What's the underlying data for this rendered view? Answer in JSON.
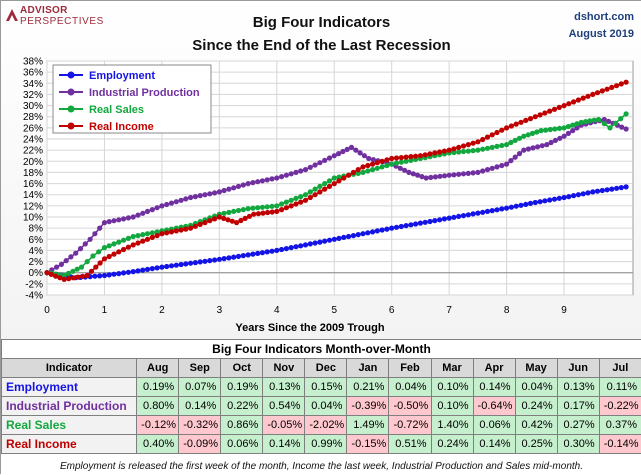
{
  "header": {
    "logo_line1": "ADVISOR",
    "logo_line2": "PERSPECTIVES",
    "title_line1": "Big Four Indicators",
    "title_line2": "Since the End of the Last Recession",
    "source": "dshort.com",
    "date": "August 2019"
  },
  "chart_data": {
    "type": "line",
    "xlabel": "Years Since the 2009 Trough",
    "ylabel": "",
    "xlim": [
      0,
      10.2
    ],
    "ylim": [
      -4,
      38
    ],
    "x_ticks": [
      0,
      1,
      2,
      3,
      4,
      5,
      6,
      7,
      8,
      9
    ],
    "y_ticks": [
      -4,
      -2,
      0,
      2,
      4,
      6,
      8,
      10,
      12,
      14,
      16,
      18,
      20,
      22,
      24,
      26,
      28,
      30,
      32,
      34,
      36,
      38
    ],
    "y_tick_labels": [
      "-4%",
      "-2%",
      "0%",
      "2%",
      "4%",
      "6%",
      "8%",
      "10%",
      "12%",
      "14%",
      "16%",
      "18%",
      "20%",
      "22%",
      "24%",
      "26%",
      "28%",
      "30%",
      "32%",
      "34%",
      "36%",
      "38%"
    ],
    "legend_position": "top-left",
    "grid": true,
    "series": [
      {
        "name": "Employment",
        "color": "#1414e6",
        "x": [
          0,
          0.5,
          1,
          1.5,
          2,
          2.5,
          3,
          3.5,
          4,
          4.5,
          5,
          5.5,
          6,
          6.5,
          7,
          7.5,
          8,
          8.5,
          9,
          9.5,
          10.08
        ],
        "y": [
          0,
          -0.9,
          -0.5,
          0.2,
          1.0,
          1.7,
          2.4,
          3.2,
          4.0,
          5.0,
          6.0,
          7.0,
          8.0,
          8.9,
          9.8,
          10.7,
          11.6,
          12.6,
          13.5,
          14.5,
          15.4
        ]
      },
      {
        "name": "Industrial Production",
        "color": "#7030a0",
        "x": [
          0,
          0.25,
          0.5,
          0.75,
          1,
          1.5,
          2,
          2.5,
          3,
          3.5,
          4,
          4.5,
          5,
          5.3,
          5.6,
          6,
          6.3,
          6.6,
          7,
          7.5,
          8,
          8.3,
          8.7,
          9,
          9.3,
          9.7,
          10.08
        ],
        "y": [
          0,
          1.5,
          3.5,
          6.0,
          9.0,
          10.0,
          12.0,
          13.5,
          14.5,
          16.0,
          17.0,
          18.5,
          21.0,
          22.5,
          20.5,
          19.5,
          18.0,
          17.0,
          17.5,
          18.0,
          19.5,
          22.0,
          23.0,
          24.5,
          26.5,
          27.5,
          25.8
        ]
      },
      {
        "name": "Real Sales",
        "color": "#13a83f",
        "x": [
          0,
          0.3,
          0.6,
          0.8,
          1,
          1.5,
          2,
          2.5,
          3,
          3.5,
          4,
          4.5,
          5,
          5.5,
          6,
          6.5,
          7,
          7.5,
          8,
          8.3,
          8.6,
          9,
          9.3,
          9.6,
          9.8,
          10.08
        ],
        "y": [
          0,
          -0.5,
          1.0,
          3.0,
          4.5,
          6.5,
          7.5,
          8.5,
          10.5,
          11.5,
          12.0,
          14.0,
          17.0,
          18.0,
          19.5,
          20.5,
          21.5,
          22.0,
          23.0,
          24.5,
          25.5,
          26.0,
          27.0,
          27.5,
          26.0,
          28.5
        ]
      },
      {
        "name": "Real Income",
        "color": "#c00000",
        "x": [
          0,
          0.3,
          0.7,
          1,
          1.5,
          2,
          2.5,
          3,
          3.3,
          3.6,
          4,
          4.5,
          5,
          5.5,
          6,
          6.5,
          7,
          7.5,
          8,
          8.5,
          9,
          9.5,
          10.08
        ],
        "y": [
          0,
          -1.2,
          -0.5,
          2.5,
          5.0,
          7.0,
          8.0,
          10.0,
          9.0,
          10.5,
          11.0,
          13.0,
          16.0,
          19.0,
          20.5,
          21.0,
          22.0,
          23.5,
          26.0,
          28.0,
          30.0,
          32.0,
          34.2
        ]
      }
    ]
  },
  "table": {
    "title": "Big Four Indicators Month-over-Month",
    "header_label": "Indicator",
    "months": [
      "Aug",
      "Sep",
      "Oct",
      "Nov",
      "Dec",
      "Jan",
      "Feb",
      "Mar",
      "Apr",
      "May",
      "Jun",
      "Jul"
    ],
    "rows": [
      {
        "name": "Employment",
        "color": "#1414e6",
        "values": [
          "0.19%",
          "0.07%",
          "0.19%",
          "0.13%",
          "0.15%",
          "0.21%",
          "0.04%",
          "0.10%",
          "0.14%",
          "0.04%",
          "0.13%",
          "0.11%"
        ]
      },
      {
        "name": "Industrial Production",
        "color": "#7030a0",
        "values": [
          "0.80%",
          "0.14%",
          "0.22%",
          "0.54%",
          "0.04%",
          "-0.39%",
          "-0.50%",
          "0.10%",
          "-0.64%",
          "0.24%",
          "0.17%",
          "-0.22%"
        ]
      },
      {
        "name": "Real Sales",
        "color": "#13a83f",
        "values": [
          "-0.12%",
          "-0.32%",
          "0.86%",
          "-0.05%",
          "-2.02%",
          "1.49%",
          "-0.72%",
          "1.40%",
          "0.06%",
          "0.42%",
          "0.27%",
          "0.37%"
        ]
      },
      {
        "name": "Real Income",
        "color": "#c00000",
        "values": [
          "0.40%",
          "-0.09%",
          "0.06%",
          "0.14%",
          "0.99%",
          "-0.15%",
          "0.51%",
          "0.24%",
          "0.14%",
          "0.25%",
          "0.30%",
          "-0.14%"
        ]
      }
    ]
  },
  "footnote": "Employment is released the first week of the month, Income the last week, Industrial Production and Sales mid-month."
}
